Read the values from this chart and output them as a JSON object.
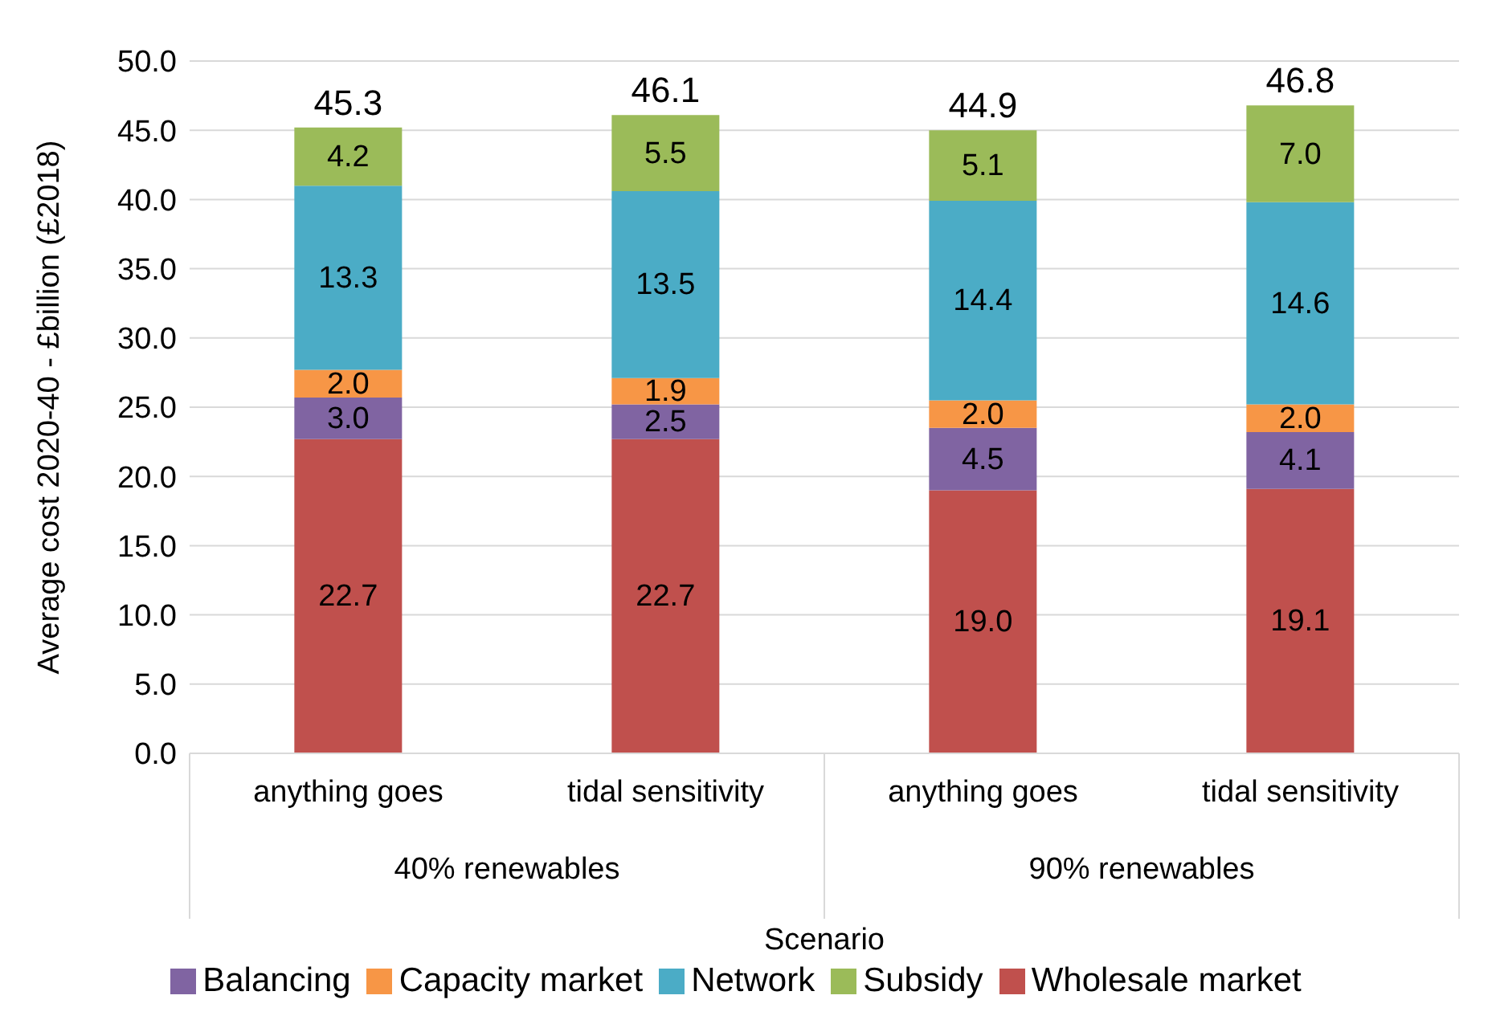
{
  "chart_data": {
    "type": "bar",
    "stacked": true,
    "xlabel": "Scenario",
    "ylabel": "Average cost 2020-40 - £billion (£2018)",
    "categories": [
      "anything goes",
      "tidal sensitivity",
      "anything goes",
      "tidal sensitivity"
    ],
    "annotations": [
      "40% renewables",
      "90% renewables"
    ],
    "series": [
      {
        "name": "Wholesale market",
        "color": "#c0504d",
        "values": [
          22.7,
          22.7,
          19.0,
          19.1
        ],
        "value_labels": [
          "22.7",
          "22.7",
          "19.0",
          "19.1"
        ]
      },
      {
        "name": "Balancing",
        "color": "#8064a2",
        "values": [
          3.0,
          2.5,
          4.5,
          4.1
        ],
        "value_labels": [
          "3.0",
          "2.5",
          "4.5",
          "4.1"
        ]
      },
      {
        "name": "Capacity market",
        "color": "#f79646",
        "values": [
          2.0,
          1.9,
          2.0,
          2.0
        ],
        "value_labels": [
          "2.0",
          "1.9",
          "2.0",
          "2.0"
        ]
      },
      {
        "name": "Network",
        "color": "#4bacc6",
        "values": [
          13.3,
          13.5,
          14.4,
          14.6
        ],
        "value_labels": [
          "13.3",
          "13.5",
          "14.4",
          "14.6"
        ]
      },
      {
        "name": "Subsidy",
        "color": "#9bbb59",
        "values": [
          4.2,
          5.5,
          5.1,
          7.0
        ],
        "value_labels": [
          "4.2",
          "5.5",
          "5.1",
          "7.0"
        ]
      }
    ],
    "totals": [
      "45.3",
      "46.1",
      "44.9",
      "46.8"
    ],
    "ylim": [
      0,
      50
    ],
    "yticks": [
      {
        "value": 0,
        "label": "0.0"
      },
      {
        "value": 5,
        "label": "5.0"
      },
      {
        "value": 10,
        "label": "10.0"
      },
      {
        "value": 15,
        "label": "15.0"
      },
      {
        "value": 20,
        "label": "20.0"
      },
      {
        "value": 25,
        "label": "25.0"
      },
      {
        "value": 30,
        "label": "30.0"
      },
      {
        "value": 35,
        "label": "35.0"
      },
      {
        "value": 40,
        "label": "40.0"
      },
      {
        "value": 45,
        "label": "45.0"
      },
      {
        "value": 50,
        "label": "50.0"
      }
    ],
    "grid": "y",
    "legend": "bottom"
  }
}
